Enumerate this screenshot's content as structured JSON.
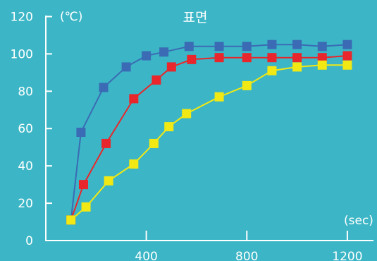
{
  "chart_data": {
    "type": "line",
    "title": "표면",
    "xlabel": "(sec)",
    "ylabel": "(℃)",
    "xlim": [
      0,
      1300
    ],
    "ylim": [
      0,
      120
    ],
    "x_ticks": [
      400,
      800,
      1200
    ],
    "x_tick_labels": [
      "400",
      "800",
      "1200"
    ],
    "y_ticks": [
      0,
      20,
      40,
      60,
      80,
      100,
      120
    ],
    "y_tick_labels": [
      "0",
      "20",
      "40",
      "60",
      "80",
      "100",
      "120"
    ],
    "grid": false,
    "legend": false,
    "series": [
      {
        "color": "#3a6bb4",
        "x": [
          100,
          140,
          230,
          320,
          400,
          470,
          570,
          690,
          800,
          900,
          1000,
          1100,
          1200
        ],
        "y": [
          11,
          58,
          82,
          93,
          99,
          101,
          104,
          104,
          104,
          105,
          105,
          104,
          105
        ]
      },
      {
        "color": "#e8262b",
        "x": [
          100,
          150,
          240,
          350,
          440,
          500,
          580,
          690,
          800,
          900,
          1000,
          1100,
          1200
        ],
        "y": [
          11,
          30,
          52,
          76,
          86,
          93,
          97,
          98,
          98,
          98,
          98,
          98,
          99
        ]
      },
      {
        "color": "#f2e813",
        "x": [
          100,
          160,
          250,
          350,
          430,
          490,
          560,
          690,
          800,
          900,
          1000,
          1100,
          1200
        ],
        "y": [
          11,
          18,
          32,
          41,
          52,
          61,
          68,
          77,
          83,
          91,
          93,
          94,
          94
        ]
      }
    ]
  }
}
